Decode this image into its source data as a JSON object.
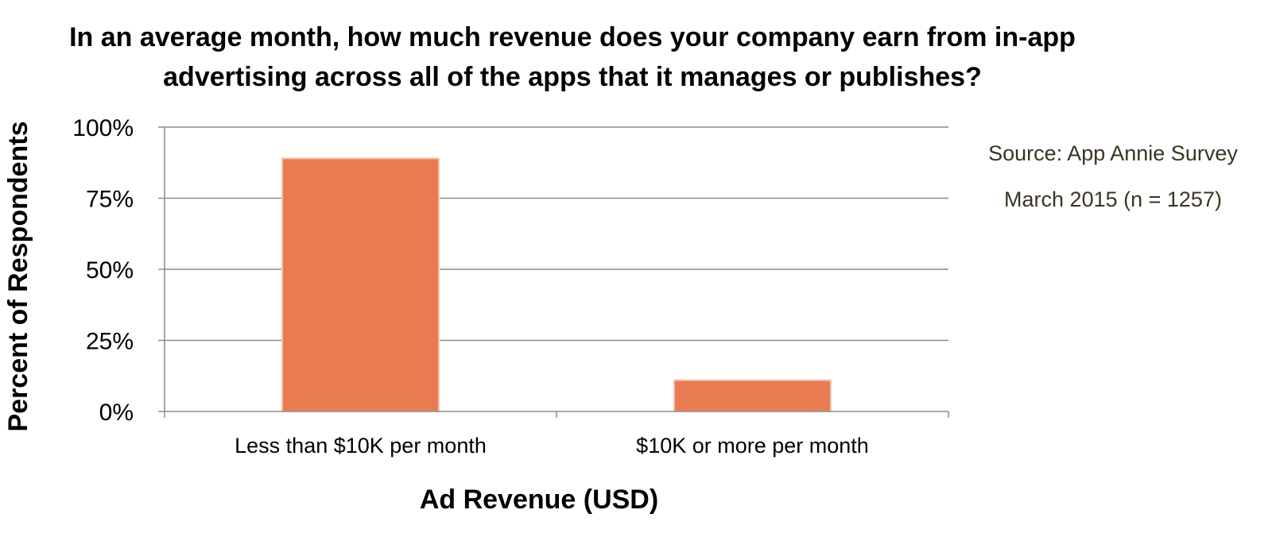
{
  "chart_data": {
    "type": "bar",
    "title_lines": [
      "In an average month, how much revenue does your company earn from in-app",
      "advertising across all of the apps that it manages or publishes?"
    ],
    "categories": [
      "Less than $10K per month",
      "$10K or more per month"
    ],
    "values": [
      89,
      11
    ],
    "xlabel": "Ad Revenue (USD)",
    "ylabel": "Percent of Respondents",
    "ylim": [
      0,
      100
    ],
    "yticks": [
      0,
      25,
      50,
      75,
      100
    ],
    "ytick_labels": [
      "0%",
      "25%",
      "50%",
      "75%",
      "100%"
    ],
    "grid": true,
    "bar_color": "#E97B52",
    "annotation_lines": [
      "Source: App Annie Survey",
      "March 2015 (n = 1257)"
    ]
  }
}
